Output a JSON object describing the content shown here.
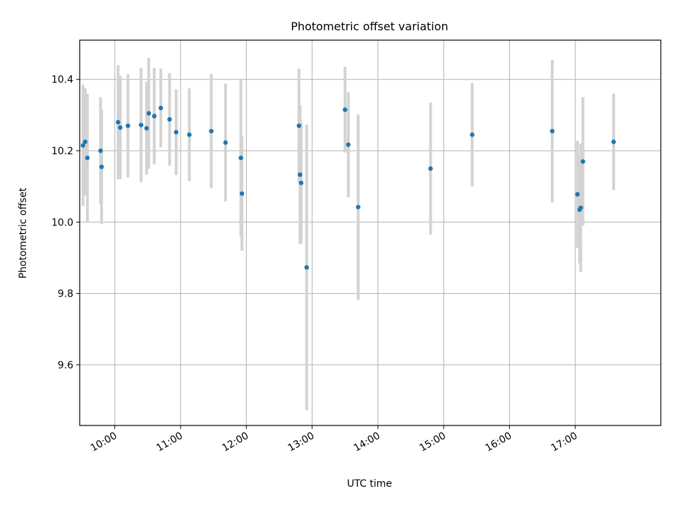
{
  "chart_data": {
    "type": "scatter",
    "title": "Photometric offset variation",
    "xlabel": "UTC time",
    "ylabel": "Photometric offset",
    "x_ticks": [
      "10:00",
      "11:00",
      "12:00",
      "13:00",
      "14:00",
      "15:00",
      "16:00",
      "17:00"
    ],
    "y_ticks": [
      "9.6",
      "9.8",
      "10.0",
      "10.2",
      "10.4"
    ],
    "xlim": [
      "09:28",
      "18:18"
    ],
    "ylim": [
      9.43,
      10.51
    ],
    "grid": true,
    "marker_color": "#1f77b4",
    "errorbar_color": "#d3d3d3",
    "points": [
      {
        "t": "09:31",
        "y": 10.215,
        "err": 0.17
      },
      {
        "t": "09:33",
        "y": 10.225,
        "err": 0.15
      },
      {
        "t": "09:35",
        "y": 10.18,
        "err": 0.18
      },
      {
        "t": "09:47",
        "y": 10.2,
        "err": 0.15
      },
      {
        "t": "09:48",
        "y": 10.155,
        "err": 0.16
      },
      {
        "t": "10:03",
        "y": 10.28,
        "err": 0.16
      },
      {
        "t": "10:05",
        "y": 10.265,
        "err": 0.145
      },
      {
        "t": "10:12",
        "y": 10.27,
        "err": 0.145
      },
      {
        "t": "10:24",
        "y": 10.272,
        "err": 0.16
      },
      {
        "t": "10:29",
        "y": 10.263,
        "err": 0.13
      },
      {
        "t": "10:31",
        "y": 10.305,
        "err": 0.155
      },
      {
        "t": "10:36",
        "y": 10.297,
        "err": 0.135
      },
      {
        "t": "10:42",
        "y": 10.32,
        "err": 0.11
      },
      {
        "t": "10:50",
        "y": 10.288,
        "err": 0.13
      },
      {
        "t": "10:56",
        "y": 10.252,
        "err": 0.12
      },
      {
        "t": "11:08",
        "y": 10.245,
        "err": 0.13
      },
      {
        "t": "11:28",
        "y": 10.255,
        "err": 0.16
      },
      {
        "t": "11:41",
        "y": 10.223,
        "err": 0.165
      },
      {
        "t": "11:55",
        "y": 10.18,
        "err": 0.22
      },
      {
        "t": "11:56",
        "y": 10.08,
        "err": 0.16
      },
      {
        "t": "12:48",
        "y": 10.27,
        "err": 0.16
      },
      {
        "t": "12:49",
        "y": 10.133,
        "err": 0.195
      },
      {
        "t": "12:50",
        "y": 10.11,
        "err": 0.17
      },
      {
        "t": "12:55",
        "y": 9.873,
        "err": 0.4
      },
      {
        "t": "13:30",
        "y": 10.315,
        "err": 0.12
      },
      {
        "t": "13:33",
        "y": 10.217,
        "err": 0.147
      },
      {
        "t": "13:42",
        "y": 10.042,
        "err": 0.26
      },
      {
        "t": "14:48",
        "y": 10.15,
        "err": 0.185
      },
      {
        "t": "15:26",
        "y": 10.245,
        "err": 0.145
      },
      {
        "t": "16:39",
        "y": 10.255,
        "err": 0.2
      },
      {
        "t": "17:02",
        "y": 10.078,
        "err": 0.15
      },
      {
        "t": "17:04",
        "y": 10.035,
        "err": 0.15
      },
      {
        "t": "17:05",
        "y": 10.04,
        "err": 0.18
      },
      {
        "t": "17:07",
        "y": 10.17,
        "err": 0.18
      },
      {
        "t": "17:35",
        "y": 10.225,
        "err": 0.135
      }
    ]
  }
}
